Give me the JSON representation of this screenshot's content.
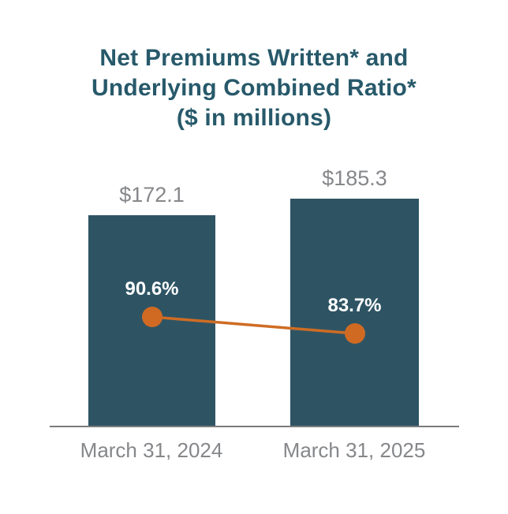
{
  "title_display": "Net Premiums Written* and\nUnderlying Combined Ratio*\n($ in millions)",
  "chart_data": {
    "type": "bar",
    "title": "Net Premiums Written* and Underlying Combined Ratio* ($ in millions)",
    "categories": [
      "March 31, 2024",
      "March 31, 2025"
    ],
    "series": [
      {
        "name": "Net Premiums Written ($ in millions)",
        "type": "bar",
        "values": [
          172.1,
          185.3
        ],
        "labels": [
          "$172.1",
          "$185.3"
        ]
      },
      {
        "name": "Underlying Combined Ratio",
        "type": "line",
        "values": [
          90.6,
          83.7
        ],
        "labels": [
          "90.6%",
          "83.7%"
        ]
      }
    ],
    "ylim": [
      0,
      200
    ],
    "grid": false,
    "legend": "none",
    "axes_labeled": false
  },
  "colors": {
    "title-teal": "#27596a",
    "bar-teal": "#2e5464",
    "marker-orange": "#d06a22",
    "line-orange": "#ce6c24",
    "label-gray": "#85878a",
    "axis-gray": "#7b7b7d",
    "pct-white": "#ffffff"
  }
}
